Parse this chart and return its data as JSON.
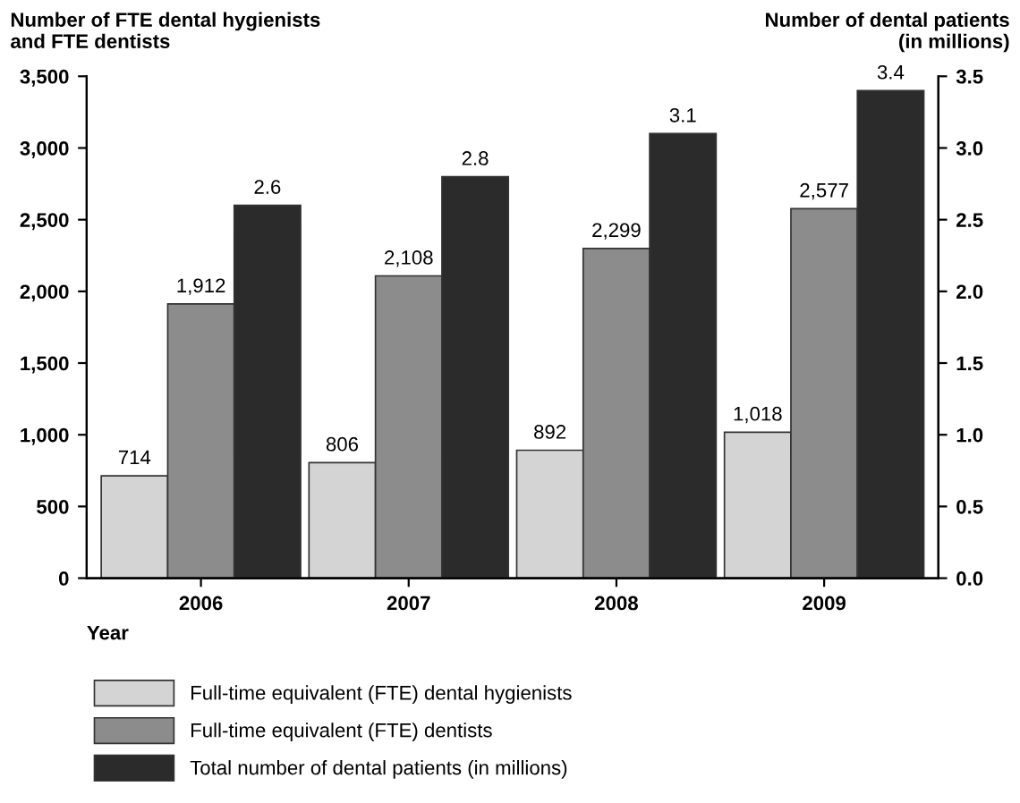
{
  "chart_data": {
    "type": "bar",
    "categories": [
      "2006",
      "2007",
      "2008",
      "2009"
    ],
    "ylabel": "Number of FTE dental hygienists\nand FTE dentists",
    "y2label": "Number of dental patients\n(in millions)",
    "xlabel": "Year",
    "series": [
      {
        "name": "Full-time equivalent (FTE) dental hygienists",
        "color": "#d4d4d4",
        "values": [
          714,
          806,
          892,
          1018
        ],
        "value_labels": [
          "714",
          "806",
          "892",
          "1,018"
        ]
      },
      {
        "name": "Full-time equivalent (FTE) dentists",
        "color": "#8c8c8c",
        "values": [
          1912,
          2108,
          2299,
          2577
        ],
        "value_labels": [
          "1,912",
          "2,108",
          "2,299",
          "2,577"
        ]
      },
      {
        "name": "Total number of dental patients (in millions)",
        "color": "#2b2b2b",
        "axis": "y2",
        "values": [
          2.6,
          2.8,
          3.1,
          3.4
        ],
        "value_labels": [
          "2.6",
          "2.8",
          "3.1",
          "3.4"
        ]
      }
    ],
    "ylim": [
      0,
      3500
    ],
    "yticks": [
      0,
      500,
      {
        "value": 1000,
        "label": "1,000"
      },
      {
        "value": 1500,
        "label": "1,500"
      },
      {
        "value": 2000,
        "label": "2,000"
      },
      {
        "value": 2500,
        "label": "2,500"
      },
      {
        "value": 3000,
        "label": "3,000"
      },
      {
        "value": 3500,
        "label": "3,500"
      }
    ],
    "y2lim": [
      0,
      3.5
    ],
    "y2ticks": [
      {
        "value": 0,
        "label": "0.0"
      },
      {
        "value": 0.5,
        "label": "0.5"
      },
      {
        "value": 1,
        "label": "1.0"
      },
      {
        "value": 1.5,
        "label": "1.5"
      },
      {
        "value": 2,
        "label": "2.0"
      },
      {
        "value": 2.5,
        "label": "2.5"
      },
      {
        "value": 3,
        "label": "3.0"
      },
      {
        "value": 3.5,
        "label": "3.5"
      }
    ],
    "grid": false,
    "legend": "bottom"
  }
}
